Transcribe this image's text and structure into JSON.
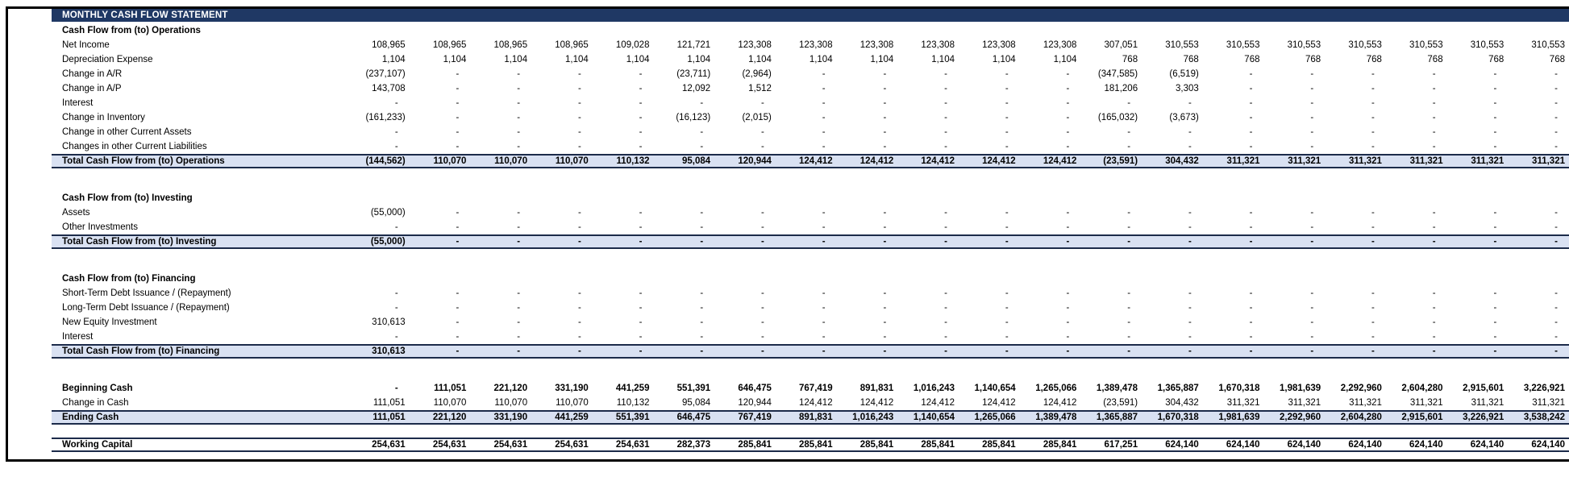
{
  "title": "MONTHLY CASH FLOW STATEMENT",
  "colors": {
    "title_bg": "#1F3864",
    "title_fg": "#FFFFFF",
    "total_row_bg": "#D9E1F2",
    "total_row_border": "#1C2B4A",
    "frame_border": "#000000",
    "text": "#000000"
  },
  "statement": {
    "column_count": 20,
    "rows": [
      {
        "name": "section-operations",
        "type": "section",
        "label": "Cash Flow from (to) Operations",
        "values": []
      },
      {
        "name": "net-income",
        "type": "item",
        "label": "Net Income",
        "values": [
          "108,965",
          "108,965",
          "108,965",
          "108,965",
          "109,028",
          "121,721",
          "123,308",
          "123,308",
          "123,308",
          "123,308",
          "123,308",
          "123,308",
          "307,051",
          "310,553",
          "310,553",
          "310,553",
          "310,553",
          "310,553",
          "310,553",
          "310,553"
        ]
      },
      {
        "name": "depreciation-expense",
        "type": "item",
        "label": "Depreciation Expense",
        "values": [
          "1,104",
          "1,104",
          "1,104",
          "1,104",
          "1,104",
          "1,104",
          "1,104",
          "1,104",
          "1,104",
          "1,104",
          "1,104",
          "1,104",
          "768",
          "768",
          "768",
          "768",
          "768",
          "768",
          "768",
          "768"
        ]
      },
      {
        "name": "change-in-ar",
        "type": "item",
        "label": "Change in A/R",
        "values": [
          "(237,107)",
          "-",
          "-",
          "-",
          "-",
          "(23,711)",
          "(2,964)",
          "-",
          "-",
          "-",
          "-",
          "-",
          "(347,585)",
          "(6,519)",
          "-",
          "-",
          "-",
          "-",
          "-",
          "-"
        ]
      },
      {
        "name": "change-in-ap",
        "type": "item",
        "label": "Change in A/P",
        "values": [
          "143,708",
          "-",
          "-",
          "-",
          "-",
          "12,092",
          "1,512",
          "-",
          "-",
          "-",
          "-",
          "-",
          "181,206",
          "3,303",
          "-",
          "-",
          "-",
          "-",
          "-",
          "-"
        ]
      },
      {
        "name": "interest-operations",
        "type": "item",
        "label": "Interest",
        "values": [
          "-",
          "-",
          "-",
          "-",
          "-",
          "-",
          "-",
          "-",
          "-",
          "-",
          "-",
          "-",
          "-",
          "-",
          "-",
          "-",
          "-",
          "-",
          "-",
          "-"
        ]
      },
      {
        "name": "change-in-inventory",
        "type": "item",
        "label": "Change in Inventory",
        "values": [
          "(161,233)",
          "-",
          "-",
          "-",
          "-",
          "(16,123)",
          "(2,015)",
          "-",
          "-",
          "-",
          "-",
          "-",
          "(165,032)",
          "(3,673)",
          "-",
          "-",
          "-",
          "-",
          "-",
          "-"
        ]
      },
      {
        "name": "change-in-other-current-assets",
        "type": "item",
        "label": "Change in other Current Assets",
        "values": [
          "-",
          "-",
          "-",
          "-",
          "-",
          "-",
          "-",
          "-",
          "-",
          "-",
          "-",
          "-",
          "-",
          "-",
          "-",
          "-",
          "-",
          "-",
          "-",
          "-"
        ]
      },
      {
        "name": "changes-in-other-current-liabilities",
        "type": "item",
        "label": "Changes in other Current Liabilities",
        "values": [
          "-",
          "-",
          "-",
          "-",
          "-",
          "-",
          "-",
          "-",
          "-",
          "-",
          "-",
          "-",
          "-",
          "-",
          "-",
          "-",
          "-",
          "-",
          "-",
          "-"
        ]
      },
      {
        "name": "total-operations",
        "type": "total",
        "label": "Total Cash Flow from (to) Operations",
        "values": [
          "(144,562)",
          "110,070",
          "110,070",
          "110,070",
          "110,132",
          "95,084",
          "120,944",
          "124,412",
          "124,412",
          "124,412",
          "124,412",
          "124,412",
          "(23,591)",
          "304,432",
          "311,321",
          "311,321",
          "311,321",
          "311,321",
          "311,321",
          "311,321"
        ]
      },
      {
        "name": "spacer-1",
        "type": "spacer",
        "label": "",
        "values": []
      },
      {
        "name": "section-investing",
        "type": "section",
        "label": "Cash Flow from (to) Investing",
        "values": []
      },
      {
        "name": "assets",
        "type": "item",
        "label": "Assets",
        "values": [
          "(55,000)",
          "-",
          "-",
          "-",
          "-",
          "-",
          "-",
          "-",
          "-",
          "-",
          "-",
          "-",
          "-",
          "-",
          "-",
          "-",
          "-",
          "-",
          "-",
          "-"
        ]
      },
      {
        "name": "other-investments",
        "type": "item",
        "label": "Other Investments",
        "values": [
          "-",
          "-",
          "-",
          "-",
          "-",
          "-",
          "-",
          "-",
          "-",
          "-",
          "-",
          "-",
          "-",
          "-",
          "-",
          "-",
          "-",
          "-",
          "-",
          "-"
        ]
      },
      {
        "name": "total-investing",
        "type": "total",
        "label": "Total Cash Flow from (to) Investing",
        "values": [
          "(55,000)",
          "-",
          "-",
          "-",
          "-",
          "-",
          "-",
          "-",
          "-",
          "-",
          "-",
          "-",
          "-",
          "-",
          "-",
          "-",
          "-",
          "-",
          "-",
          "-"
        ]
      },
      {
        "name": "spacer-2",
        "type": "spacer",
        "label": "",
        "values": []
      },
      {
        "name": "section-financing",
        "type": "section",
        "label": "Cash Flow from (to) Financing",
        "values": []
      },
      {
        "name": "short-term-debt-issuance",
        "type": "item",
        "label": "Short-Term Debt Issuance / (Repayment)",
        "values": [
          "-",
          "-",
          "-",
          "-",
          "-",
          "-",
          "-",
          "-",
          "-",
          "-",
          "-",
          "-",
          "-",
          "-",
          "-",
          "-",
          "-",
          "-",
          "-",
          "-"
        ]
      },
      {
        "name": "long-term-debt-issuance",
        "type": "item",
        "label": "Long-Term Debt Issuance / (Repayment)",
        "values": [
          "-",
          "-",
          "-",
          "-",
          "-",
          "-",
          "-",
          "-",
          "-",
          "-",
          "-",
          "-",
          "-",
          "-",
          "-",
          "-",
          "-",
          "-",
          "-",
          "-"
        ]
      },
      {
        "name": "new-equity-investment",
        "type": "item",
        "label": "New Equity Investment",
        "values": [
          "310,613",
          "-",
          "-",
          "-",
          "-",
          "-",
          "-",
          "-",
          "-",
          "-",
          "-",
          "-",
          "-",
          "-",
          "-",
          "-",
          "-",
          "-",
          "-",
          "-"
        ]
      },
      {
        "name": "interest-financing",
        "type": "item",
        "label": "Interest",
        "values": [
          "-",
          "-",
          "-",
          "-",
          "-",
          "-",
          "-",
          "-",
          "-",
          "-",
          "-",
          "-",
          "-",
          "-",
          "-",
          "-",
          "-",
          "-",
          "-",
          "-"
        ]
      },
      {
        "name": "total-financing",
        "type": "total",
        "label": "Total Cash Flow from (to) Financing",
        "values": [
          "310,613",
          "-",
          "-",
          "-",
          "-",
          "-",
          "-",
          "-",
          "-",
          "-",
          "-",
          "-",
          "-",
          "-",
          "-",
          "-",
          "-",
          "-",
          "-",
          "-"
        ]
      },
      {
        "name": "spacer-3",
        "type": "spacer",
        "label": "",
        "values": []
      },
      {
        "name": "beginning-cash",
        "type": "item-bold",
        "label": "Beginning Cash",
        "values": [
          "-",
          "111,051",
          "221,120",
          "331,190",
          "441,259",
          "551,391",
          "646,475",
          "767,419",
          "891,831",
          "1,016,243",
          "1,140,654",
          "1,265,066",
          "1,389,478",
          "1,365,887",
          "1,670,318",
          "1,981,639",
          "2,292,960",
          "2,604,280",
          "2,915,601",
          "3,226,921"
        ]
      },
      {
        "name": "change-in-cash",
        "type": "item",
        "label": "Change in Cash",
        "values": [
          "111,051",
          "110,070",
          "110,070",
          "110,070",
          "110,132",
          "95,084",
          "120,944",
          "124,412",
          "124,412",
          "124,412",
          "124,412",
          "124,412",
          "(23,591)",
          "304,432",
          "311,321",
          "311,321",
          "311,321",
          "311,321",
          "311,321",
          "311,321"
        ]
      },
      {
        "name": "ending-cash",
        "type": "total",
        "label": "Ending Cash",
        "values": [
          "111,051",
          "221,120",
          "331,190",
          "441,259",
          "551,391",
          "646,475",
          "767,419",
          "891,831",
          "1,016,243",
          "1,140,654",
          "1,265,066",
          "1,389,478",
          "1,365,887",
          "1,670,318",
          "1,981,639",
          "2,292,960",
          "2,604,280",
          "2,915,601",
          "3,226,921",
          "3,538,242"
        ]
      },
      {
        "name": "spacer-4",
        "type": "spacer-small",
        "label": "",
        "values": []
      },
      {
        "name": "working-capital",
        "type": "rule",
        "label": "Working Capital",
        "values": [
          "254,631",
          "254,631",
          "254,631",
          "254,631",
          "254,631",
          "282,373",
          "285,841",
          "285,841",
          "285,841",
          "285,841",
          "285,841",
          "285,841",
          "617,251",
          "624,140",
          "624,140",
          "624,140",
          "624,140",
          "624,140",
          "624,140",
          "624,140"
        ]
      }
    ]
  }
}
